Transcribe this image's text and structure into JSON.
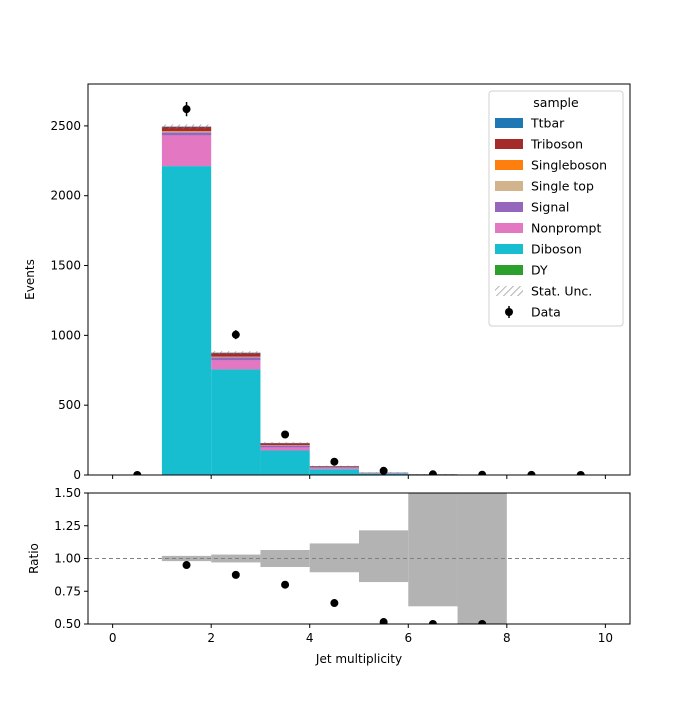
{
  "chart_data": {
    "type": "bar",
    "stacked": true,
    "bin_edges": [
      0,
      1,
      2,
      3,
      4,
      5,
      6,
      7,
      8,
      9,
      10
    ],
    "x": [
      0.5,
      1.5,
      2.5,
      3.5,
      4.5,
      5.5,
      6.5,
      7.5,
      8.5,
      9.5
    ],
    "xlabel": "Jet multiplicity",
    "ylabel": "Events",
    "xlim": [
      -0.5,
      10.5
    ],
    "ylim": [
      0,
      2800
    ],
    "xticks": [
      0,
      2,
      4,
      6,
      8,
      10
    ],
    "yticks": [
      0,
      500,
      1000,
      1500,
      2000,
      2500
    ],
    "legend": {
      "title": "sample",
      "placement": "top-right",
      "stat_label": "Stat. Unc.",
      "data_label": "Data"
    },
    "series": [
      {
        "name": "DY",
        "color": "#2ca02c",
        "values": [
          0,
          2,
          1,
          0.5,
          0.2,
          0.1,
          0.05,
          0,
          0,
          0
        ]
      },
      {
        "name": "Diboson",
        "color": "#17becf",
        "values": [
          0,
          2210,
          755,
          175,
          40,
          10,
          3,
          1,
          0,
          0
        ]
      },
      {
        "name": "Nonprompt",
        "color": "#e377c2",
        "values": [
          0,
          220,
          65,
          22,
          8,
          2,
          0.5,
          0.2,
          0,
          0
        ]
      },
      {
        "name": "Signal",
        "color": "#9467bd",
        "values": [
          0,
          22,
          22,
          13,
          6,
          2,
          0.7,
          0.2,
          0,
          0
        ]
      },
      {
        "name": "Single top",
        "color": "#d2b48c",
        "values": [
          0,
          5,
          3,
          2,
          1,
          0.5,
          0.2,
          0,
          0,
          0
        ]
      },
      {
        "name": "Singleboson",
        "color": "#ff7f0e",
        "values": [
          0,
          3,
          2,
          1,
          0.5,
          0.2,
          0.1,
          0,
          0,
          0
        ]
      },
      {
        "name": "Triboson",
        "color": "#a52a2a",
        "values": [
          0,
          30,
          25,
          14,
          6,
          2,
          0.5,
          0.1,
          0,
          0
        ]
      },
      {
        "name": "Ttbar",
        "color": "#1f77b4",
        "values": [
          0,
          3,
          3,
          2,
          2,
          1,
          0.5,
          0.2,
          0,
          0
        ]
      }
    ],
    "stat_unc": [
      0,
      15,
      10,
      5,
      3,
      2,
      1.5,
      1,
      0,
      0
    ],
    "data": {
      "name": "Data",
      "values": [
        0,
        2620,
        1005,
        290,
        95,
        30,
        5,
        2,
        1,
        0
      ],
      "errors": [
        0,
        51,
        32,
        17,
        10,
        5,
        2,
        1.4,
        1,
        0
      ]
    },
    "ratio": {
      "ylabel": "Ratio",
      "ylim": [
        0.5,
        1.5
      ],
      "yticks": [
        0.5,
        0.75,
        1.0,
        1.25,
        1.5
      ],
      "ytick_labels": [
        "0.50",
        "0.75",
        "1.00",
        "1.25",
        "1.50"
      ],
      "reference_line": 1.0,
      "points_x": [
        1.5,
        2.5,
        3.5,
        4.5,
        5.5,
        6.5,
        7.5
      ],
      "points_y": [
        0.95,
        0.875,
        0.8,
        0.66,
        0.515,
        0.5,
        0.5
      ],
      "unc_band": [
        {
          "bin": [
            1,
            2
          ],
          "low": 0.98,
          "high": 1.02
        },
        {
          "bin": [
            2,
            3
          ],
          "low": 0.97,
          "high": 1.03
        },
        {
          "bin": [
            3,
            4
          ],
          "low": 0.935,
          "high": 1.065
        },
        {
          "bin": [
            4,
            5
          ],
          "low": 0.895,
          "high": 1.115
        },
        {
          "bin": [
            5,
            6
          ],
          "low": 0.82,
          "high": 1.215
        },
        {
          "bin": [
            6,
            7
          ],
          "low": 0.635,
          "high": 1.5
        },
        {
          "bin": [
            7,
            8
          ],
          "low": 0.5,
          "high": 1.5
        }
      ]
    }
  }
}
